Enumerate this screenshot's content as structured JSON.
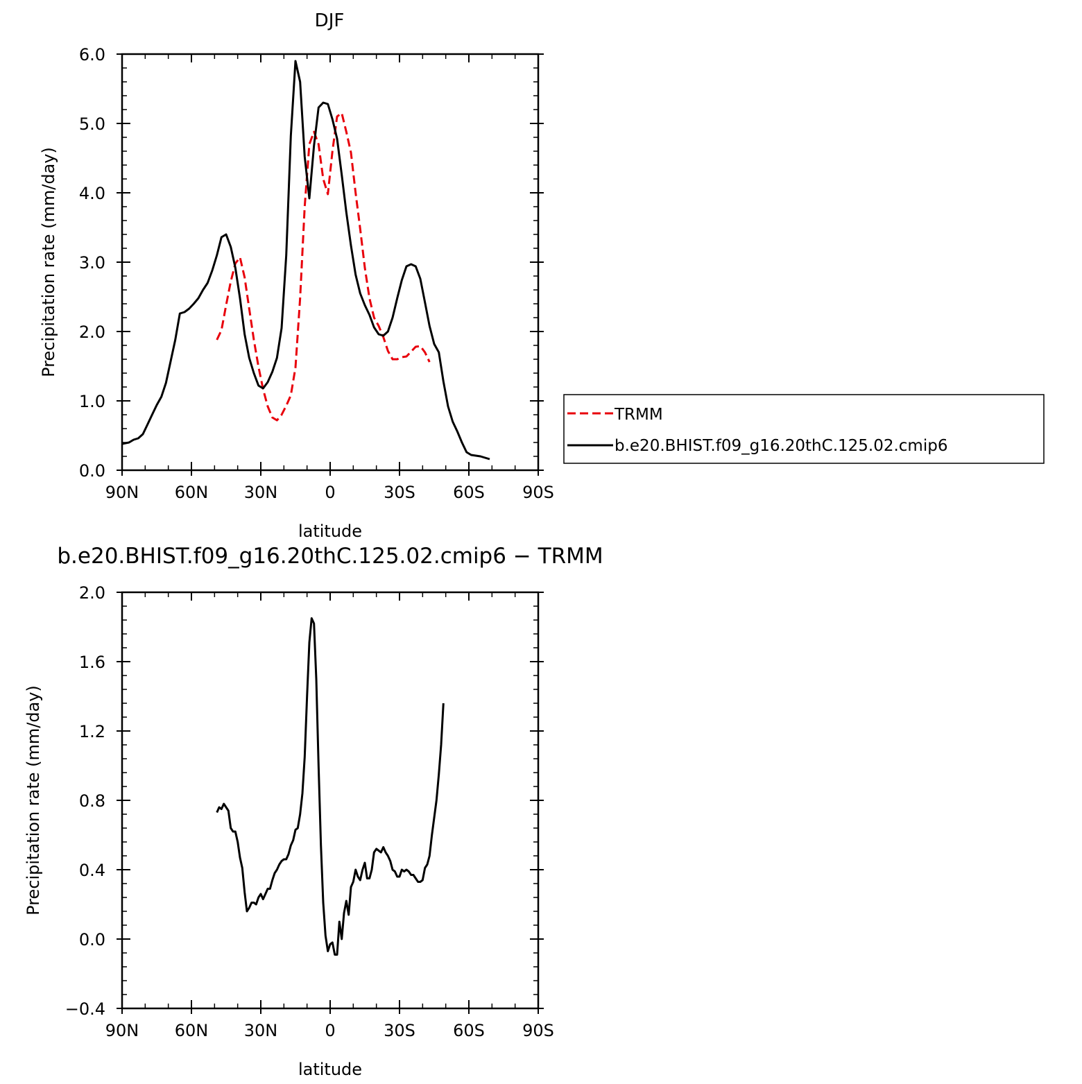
{
  "chart_data": [
    {
      "type": "line",
      "title": "DJF",
      "xlabel": "latitude",
      "ylabel": "Precipitation rate (mm/day)",
      "xlim": [
        -90,
        90
      ],
      "ylim": [
        0,
        6
      ],
      "x_ticks": [
        -90,
        -60,
        -30,
        0,
        30,
        60,
        90
      ],
      "x_tick_labels": [
        "90N",
        "60N",
        "30N",
        "0",
        "30S",
        "60S",
        "90S"
      ],
      "y_ticks": [
        0,
        1,
        2,
        3,
        4,
        5,
        6
      ],
      "y_tick_labels": [
        "0.0",
        "1.0",
        "2.0",
        "3.0",
        "4.0",
        "5.0",
        "6.0"
      ],
      "legend_position": "right",
      "series": [
        {
          "name": "TRMM",
          "color": "#e8000b",
          "style": "dashed",
          "x": [
            -49,
            -47,
            -45,
            -43,
            -41,
            -39,
            -37,
            -35,
            -33,
            -31,
            -29,
            -27,
            -25,
            -23,
            -21,
            -19,
            -17,
            -15,
            -13,
            -11,
            -9,
            -7,
            -5,
            -3,
            -1,
            1,
            3,
            5,
            7,
            9,
            11,
            13,
            15,
            17,
            19,
            21,
            23,
            25,
            27,
            29,
            31,
            33,
            35,
            37,
            39,
            41,
            43,
            45,
            47,
            49
          ],
          "y": [
            1.88,
            2.02,
            2.38,
            2.72,
            2.98,
            3.07,
            2.78,
            2.33,
            1.88,
            1.49,
            1.17,
            0.92,
            0.76,
            0.72,
            0.8,
            0.93,
            1.08,
            1.48,
            2.48,
            3.8,
            4.7,
            4.88,
            4.7,
            4.2,
            3.98,
            4.6,
            5.1,
            5.15,
            4.88,
            4.58,
            4.0,
            3.48,
            2.92,
            2.48,
            2.2,
            2.08,
            1.92,
            1.72,
            1.6,
            1.6,
            1.63,
            1.64,
            1.71,
            1.78,
            1.79,
            1.7,
            1.56,
            null,
            null,
            null
          ]
        },
        {
          "name": "b.e20.BHIST.f09_g16.20thC.125.02.cmip6",
          "color": "#000000",
          "style": "solid",
          "x": [
            -90,
            -87,
            -85,
            -83,
            -81,
            -79,
            -77,
            -75,
            -73,
            -71,
            -69,
            -67,
            -65,
            -63,
            -61,
            -59,
            -57,
            -55,
            -53,
            -51,
            -49,
            -47,
            -45,
            -43,
            -41,
            -39,
            -37,
            -35,
            -33,
            -31,
            -29,
            -27,
            -25,
            -23,
            -21,
            -19,
            -17,
            -15,
            -13,
            -11,
            -9,
            -7,
            -5,
            -3,
            -1,
            1,
            3,
            5,
            7,
            9,
            11,
            13,
            15,
            17,
            19,
            21,
            23,
            25,
            27,
            29,
            31,
            33,
            35,
            37,
            39,
            41,
            43,
            45,
            47,
            49,
            51,
            53,
            55,
            57,
            59,
            61,
            63,
            65,
            67,
            69,
            71,
            73,
            75,
            77,
            79,
            81,
            83,
            85,
            87,
            90
          ],
          "y": [
            0.38,
            0.4,
            0.44,
            0.46,
            0.52,
            0.66,
            0.8,
            0.94,
            1.06,
            1.26,
            1.57,
            1.88,
            2.26,
            2.28,
            2.33,
            2.4,
            2.48,
            2.6,
            2.7,
            2.88,
            3.1,
            3.36,
            3.4,
            3.22,
            2.92,
            2.48,
            1.96,
            1.62,
            1.4,
            1.22,
            1.18,
            1.27,
            1.42,
            1.62,
            2.05,
            3.1,
            4.82,
            5.9,
            5.6,
            4.52,
            3.92,
            4.68,
            5.23,
            5.3,
            5.28,
            5.06,
            4.78,
            4.26,
            3.72,
            3.24,
            2.82,
            2.55,
            2.38,
            2.24,
            2.06,
            1.96,
            1.94,
            2.0,
            2.2,
            2.48,
            2.74,
            2.94,
            2.97,
            2.94,
            2.76,
            2.42,
            2.08,
            1.82,
            1.7,
            1.28,
            0.92,
            0.7,
            0.56,
            0.4,
            0.26,
            0.22,
            0.21,
            0.2,
            0.18,
            0.16,
            null,
            null,
            null,
            null,
            null,
            null,
            null,
            null,
            null,
            null
          ]
        }
      ]
    },
    {
      "type": "line",
      "title": "b.e20.BHIST.f09_g16.20thC.125.02.cmip6 − TRMM",
      "xlabel": "latitude",
      "ylabel": "Precipitation rate (mm/day)",
      "xlim": [
        -90,
        90
      ],
      "ylim": [
        -0.4,
        2.0
      ],
      "x_ticks": [
        -90,
        -60,
        -30,
        0,
        30,
        60,
        90
      ],
      "x_tick_labels": [
        "90N",
        "60N",
        "30N",
        "0",
        "30S",
        "60S",
        "90S"
      ],
      "y_ticks": [
        -0.4,
        0.0,
        0.4,
        0.8,
        1.2,
        1.6,
        2.0
      ],
      "y_tick_labels": [
        "−0.4",
        "0.0",
        "0.4",
        "0.8",
        "1.2",
        "1.6",
        "2.0"
      ],
      "series": [
        {
          "color": "#000000",
          "style": "solid",
          "x": [
            -49,
            -48,
            -47,
            -46,
            -45,
            -44,
            -43,
            -42,
            -41,
            -40,
            -39,
            -38,
            -37,
            -36,
            -35,
            -34,
            -33,
            -32,
            -31,
            -30,
            -29,
            -28,
            -27,
            -26,
            -25,
            -24,
            -23,
            -22,
            -21,
            -20,
            -19,
            -18,
            -17,
            -16,
            -15,
            -14,
            -13,
            -12,
            -11,
            -10,
            -9,
            -8,
            -7,
            -6,
            -5,
            -4,
            -3,
            -2,
            -1,
            0,
            1,
            2,
            3,
            4,
            5,
            6,
            7,
            8,
            9,
            10,
            11,
            12,
            13,
            14,
            15,
            16,
            17,
            18,
            19,
            20,
            21,
            22,
            23,
            24,
            25,
            26,
            27,
            28,
            29,
            30,
            31,
            32,
            33,
            34,
            35,
            36,
            37,
            38,
            39,
            40,
            41,
            42,
            43,
            44,
            45,
            46,
            47,
            48,
            49
          ],
          "y": [
            0.73,
            0.76,
            0.75,
            0.78,
            0.76,
            0.74,
            0.64,
            0.62,
            0.62,
            0.56,
            0.47,
            0.41,
            0.27,
            0.16,
            0.18,
            0.21,
            0.21,
            0.2,
            0.24,
            0.26,
            0.23,
            0.26,
            0.29,
            0.29,
            0.34,
            0.38,
            0.4,
            0.43,
            0.45,
            0.46,
            0.46,
            0.49,
            0.54,
            0.57,
            0.63,
            0.64,
            0.72,
            0.84,
            1.05,
            1.4,
            1.71,
            1.85,
            1.82,
            1.5,
            1.0,
            0.54,
            0.21,
            0.02,
            -0.07,
            -0.03,
            -0.02,
            -0.09,
            -0.09,
            0.1,
            0.0,
            0.15,
            0.22,
            0.14,
            0.3,
            0.33,
            0.4,
            0.36,
            0.34,
            0.4,
            0.44,
            0.35,
            0.35,
            0.4,
            0.5,
            0.52,
            0.51,
            0.5,
            0.53,
            0.5,
            0.48,
            0.45,
            0.4,
            0.39,
            0.36,
            0.36,
            0.4,
            0.39,
            0.4,
            0.39,
            0.37,
            0.37,
            0.35,
            0.33,
            0.33,
            0.34,
            0.41,
            0.43,
            0.48,
            0.6,
            0.7,
            0.8,
            0.95,
            1.12,
            1.36
          ]
        }
      ]
    }
  ]
}
